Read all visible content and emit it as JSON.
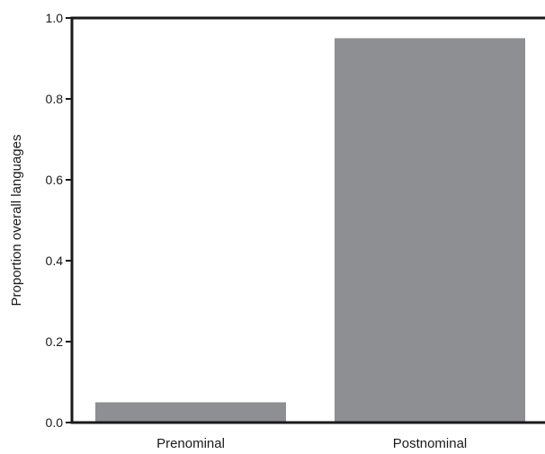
{
  "chart_data": {
    "type": "bar",
    "categories": [
      "Prenominal",
      "Postnominal"
    ],
    "values": [
      0.05,
      0.95
    ],
    "title": "",
    "xlabel": "",
    "ylabel": "Proportion overall languages",
    "ylim": [
      0,
      1
    ],
    "yticks": [
      0,
      0.2,
      0.4,
      0.6,
      0.8,
      1
    ],
    "ytick_labels": [
      "0.0",
      "0.2",
      "0.4",
      "0.6",
      "0.8",
      "1.0"
    ],
    "grid": false,
    "legend": "none",
    "bar_color": "#8e8f92",
    "axis_color": "#1a1a1a"
  }
}
